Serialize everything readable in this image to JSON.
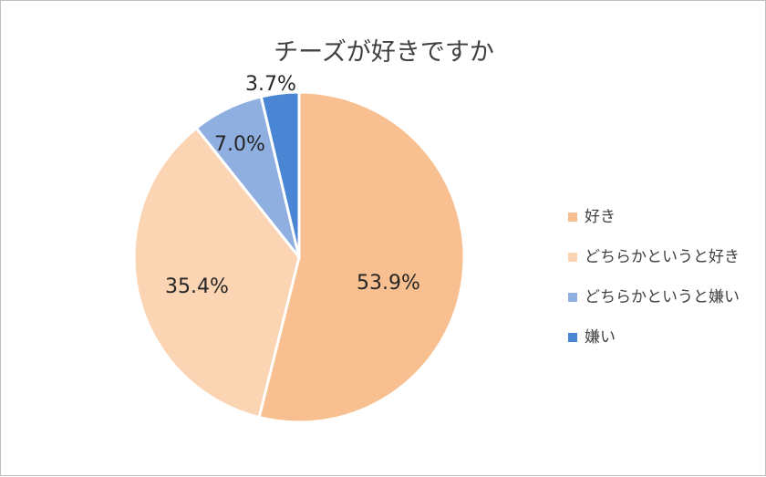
{
  "chart_data": {
    "type": "pie",
    "title": "チーズが好きですか",
    "categories": [
      "好き",
      "どちらかというと好き",
      "どちらかというと嫌い",
      "嫌い"
    ],
    "values": [
      53.9,
      35.4,
      7.0,
      3.7
    ],
    "data_labels": [
      "53.9%",
      "35.4%",
      "7.0%",
      "3.7%"
    ],
    "colors": [
      "#F8C090",
      "#FBD4B4",
      "#8FAFE0",
      "#4A86D4"
    ],
    "start_angle_deg": 0,
    "direction": "clockwise",
    "legend_position": "right"
  }
}
